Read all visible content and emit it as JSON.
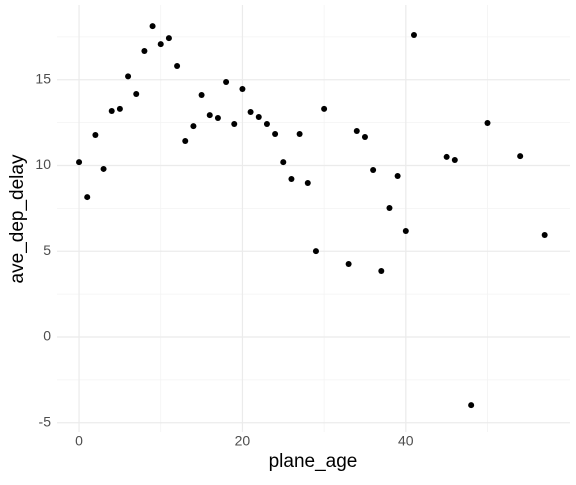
{
  "chart_data": {
    "type": "scatter",
    "x_label": "plane_age",
    "y_label": "ave_dep_delay",
    "x": [
      0,
      1,
      2,
      3,
      4,
      5,
      6,
      7,
      8,
      9,
      10,
      11,
      12,
      13,
      14,
      15,
      16,
      17,
      18,
      19,
      20,
      21,
      22,
      23,
      24,
      25,
      26,
      27,
      28,
      29,
      30,
      33,
      34,
      35,
      36,
      37,
      38,
      39,
      40,
      41,
      45,
      46,
      48,
      50,
      54,
      57
    ],
    "values": [
      10.2,
      8.16,
      11.78,
      9.8,
      13.18,
      13.3,
      15.2,
      14.17,
      16.68,
      18.13,
      17.08,
      17.43,
      15.8,
      11.43,
      12.3,
      14.11,
      12.94,
      12.77,
      14.87,
      12.42,
      14.46,
      13.12,
      12.83,
      12.42,
      11.84,
      10.2,
      9.21,
      11.84,
      8.98,
      5.01,
      13.3,
      4.26,
      12.01,
      11.66,
      9.74,
      3.85,
      7.52,
      9.39,
      6.18,
      17.61,
      10.5,
      10.32,
      -3.97,
      12.48,
      10.55,
      5.95
    ],
    "color": "#000000",
    "xlim": [
      -2.7,
      60.1
    ],
    "ylim": [
      -5.54,
      19.36
    ],
    "xticks": [
      0,
      20,
      40
    ],
    "yticks": [
      -5,
      0,
      5,
      10,
      15
    ],
    "xminorticks": [
      10,
      30,
      50
    ],
    "yminorticks": [
      -2.5,
      2.5,
      7.5,
      12.5,
      17.5
    ],
    "grid": true
  }
}
